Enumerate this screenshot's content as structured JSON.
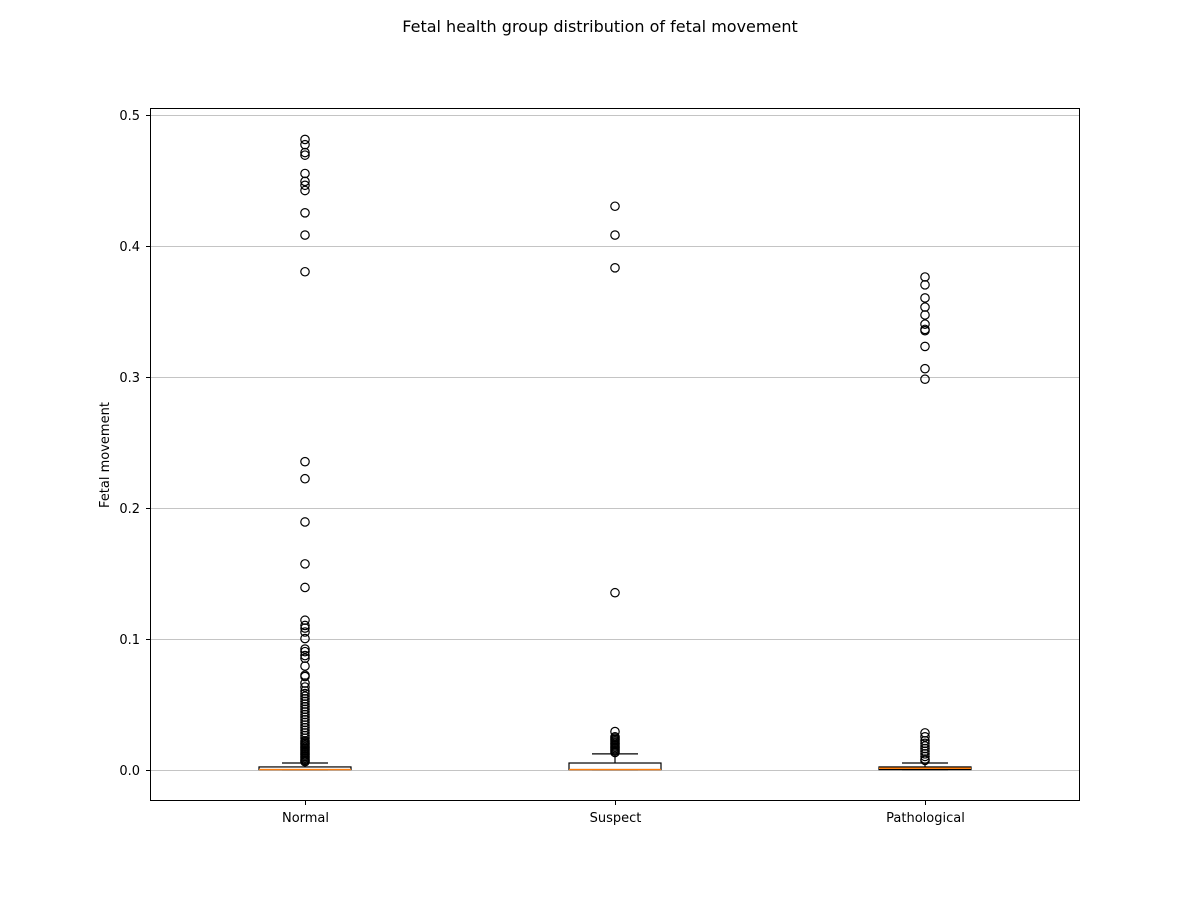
{
  "chart_data": {
    "type": "box",
    "title": "Fetal health group distribution of fetal movement",
    "xlabel": "",
    "ylabel": "Fetal movement",
    "ylim": [
      -0.024,
      0.505
    ],
    "yticks": [
      0.0,
      0.1,
      0.2,
      0.3,
      0.4,
      0.5
    ],
    "ytick_labels": [
      "0.0",
      "0.1",
      "0.2",
      "0.3",
      "0.4",
      "0.5"
    ],
    "grid": "y",
    "categories": [
      "Normal",
      "Suspect",
      "Pathological"
    ],
    "boxes": [
      {
        "category": "Normal",
        "q1": 0.0,
        "median": 0.0,
        "q3": 0.002,
        "whisker_low": 0.0,
        "whisker_high": 0.005,
        "outliers": [
          0.006,
          0.007,
          0.008,
          0.009,
          0.01,
          0.011,
          0.012,
          0.013,
          0.014,
          0.015,
          0.016,
          0.017,
          0.018,
          0.019,
          0.02,
          0.021,
          0.022,
          0.024,
          0.026,
          0.028,
          0.03,
          0.032,
          0.034,
          0.036,
          0.038,
          0.04,
          0.042,
          0.044,
          0.046,
          0.048,
          0.05,
          0.052,
          0.054,
          0.056,
          0.058,
          0.06,
          0.063,
          0.066,
          0.071,
          0.072,
          0.079,
          0.085,
          0.087,
          0.09,
          0.092,
          0.1,
          0.105,
          0.108,
          0.11,
          0.114,
          0.139,
          0.157,
          0.189,
          0.222,
          0.235,
          0.38,
          0.408,
          0.425,
          0.442,
          0.446,
          0.449,
          0.455,
          0.469,
          0.471,
          0.477,
          0.481
        ]
      },
      {
        "category": "Suspect",
        "q1": 0.0,
        "median": 0.0,
        "q3": 0.005,
        "whisker_low": 0.0,
        "whisker_high": 0.012,
        "outliers": [
          0.013,
          0.014,
          0.015,
          0.016,
          0.017,
          0.018,
          0.019,
          0.02,
          0.021,
          0.022,
          0.023,
          0.024,
          0.025,
          0.029,
          0.135,
          0.383,
          0.408,
          0.43
        ]
      },
      {
        "category": "Pathological",
        "q1": 0.0,
        "median": 0.001,
        "q3": 0.002,
        "whisker_low": 0.0,
        "whisker_high": 0.005,
        "outliers": [
          0.007,
          0.008,
          0.01,
          0.012,
          0.014,
          0.016,
          0.018,
          0.02,
          0.022,
          0.025,
          0.028,
          0.298,
          0.306,
          0.323,
          0.335,
          0.336,
          0.34,
          0.347,
          0.353,
          0.36,
          0.37,
          0.376
        ]
      }
    ],
    "colors": {
      "box": "#000000",
      "median": "#ff7f0e",
      "grid": "#b0b0b0",
      "outlier_edge": "#000000"
    }
  }
}
